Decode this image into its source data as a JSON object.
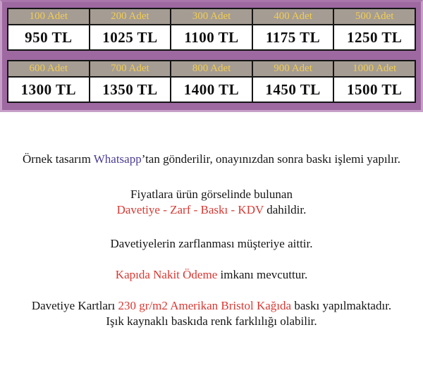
{
  "banner": {
    "bg_color": "#9d69a0",
    "edge_color": "#c79fc8",
    "header_bg_color": "#a59c93",
    "header_text_color": "#f2ce50",
    "price_text_color": "#0d0d0d",
    "table_border_color": "#151515",
    "tables": [
      {
        "cells": [
          {
            "qty": "100 Adet",
            "price": "950 TL"
          },
          {
            "qty": "200 Adet",
            "price": "1025 TL"
          },
          {
            "qty": "300 Adet",
            "price": "1100 TL"
          },
          {
            "qty": "400 Adet",
            "price": "1175 TL"
          },
          {
            "qty": "500 Adet",
            "price": "1250 TL"
          }
        ]
      },
      {
        "cells": [
          {
            "qty": "600 Adet",
            "price": "1300 TL"
          },
          {
            "qty": "700 Adet",
            "price": "1350 TL"
          },
          {
            "qty": "800 Adet",
            "price": "1400 TL"
          },
          {
            "qty": "900 Adet",
            "price": "1450 TL"
          },
          {
            "qty": "1000 Adet",
            "price": "1500 TL"
          }
        ]
      }
    ]
  },
  "notes": {
    "red_color": "#d93832",
    "whatsapp_color": "#4b3d94",
    "sample": {
      "prefix": "Örnek tasarım ",
      "whatsapp": "Whatsapp",
      "suffix": "’tan gönderilir, onayınızdan sonra baskı işlemi yapılır."
    },
    "included": {
      "line1": "Fiyatlara ürün görselinde bulunan",
      "highlight": "Davetiye - Zarf - Baskı - KDV",
      "suffix": " dahildir."
    },
    "envelope": "Davetiyelerin zarflanması müşteriye aittir.",
    "payment": {
      "highlight": "Kapıda Nakit Ödeme",
      "suffix": " imkanı mevcuttur."
    },
    "paper": {
      "prefix": "Davetiye Kartları ",
      "highlight": "230 gr/m2 Amerikan Bristol Kağıda",
      "suffix": " baskı yapılmaktadır.",
      "line2": "Işık kaynaklı baskıda renk farklılığı olabilir."
    }
  }
}
